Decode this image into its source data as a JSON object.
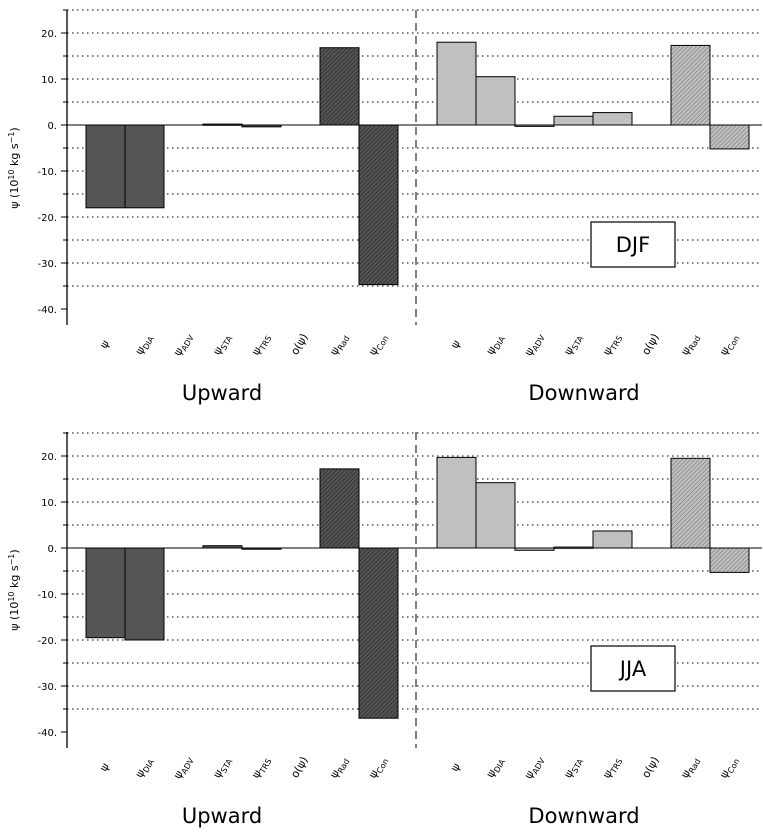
{
  "chart_data": [
    {
      "type": "bar",
      "season": "DJF",
      "ylabel": "ψ (10¹⁰ kg s⁻¹)",
      "ylim": [
        -40,
        25
      ],
      "yticks": [
        20,
        10,
        0,
        -10,
        -20,
        -30,
        -40
      ],
      "tick_labels": [
        "20.",
        "10.",
        "0.",
        "-10.",
        "-20.",
        "-30.",
        "-40."
      ],
      "grid": true,
      "groups": [
        {
          "name": "Upward",
          "categories": [
            {
              "base": "ψ",
              "sub": ""
            },
            {
              "base": "ψ",
              "sub": "DIA"
            },
            {
              "base": "ψ",
              "sub": "ADV"
            },
            {
              "base": "ψ",
              "sub": "STA"
            },
            {
              "base": "ψ",
              "sub": "TRS"
            },
            {
              "base": "o(ψ)",
              "sub": ""
            },
            {
              "base": "ψ",
              "sub": "Rad"
            },
            {
              "base": "ψ",
              "sub": "Con"
            }
          ],
          "values": [
            -18.0,
            -18.0,
            0.0,
            0.2,
            -0.4,
            0.0,
            16.8,
            -34.7
          ],
          "styles": [
            "dark",
            "dark",
            "dark",
            "dark",
            "dark",
            "dark",
            "dark-hatch",
            "dark-hatch"
          ]
        },
        {
          "name": "Downward",
          "categories": [
            {
              "base": "ψ",
              "sub": ""
            },
            {
              "base": "ψ",
              "sub": "DIA"
            },
            {
              "base": "ψ",
              "sub": "ADV"
            },
            {
              "base": "ψ",
              "sub": "STA"
            },
            {
              "base": "ψ",
              "sub": "TRS"
            },
            {
              "base": "o(ψ)",
              "sub": ""
            },
            {
              "base": "ψ",
              "sub": "Rad"
            },
            {
              "base": "ψ",
              "sub": "Con"
            }
          ],
          "values": [
            18.0,
            10.5,
            -0.3,
            1.9,
            2.7,
            0.0,
            17.3,
            -5.2
          ],
          "styles": [
            "light",
            "light",
            "light",
            "light",
            "light",
            "light",
            "light-hatch",
            "light-hatch"
          ]
        }
      ]
    },
    {
      "type": "bar",
      "season": "JJA",
      "ylabel": "ψ (10¹⁰ kg s⁻¹)",
      "ylim": [
        -40,
        25
      ],
      "yticks": [
        20,
        10,
        0,
        -10,
        -20,
        -30,
        -40
      ],
      "tick_labels": [
        "20.",
        "10.",
        "0.",
        "-10.",
        "-20.",
        "-30.",
        "-40."
      ],
      "grid": true,
      "groups": [
        {
          "name": "Upward",
          "categories": [
            {
              "base": "ψ",
              "sub": ""
            },
            {
              "base": "ψ",
              "sub": "DIA"
            },
            {
              "base": "ψ",
              "sub": "ADV"
            },
            {
              "base": "ψ",
              "sub": "STA"
            },
            {
              "base": "ψ",
              "sub": "TRS"
            },
            {
              "base": "o(ψ)",
              "sub": ""
            },
            {
              "base": "ψ",
              "sub": "Rad"
            },
            {
              "base": "ψ",
              "sub": "Con"
            }
          ],
          "values": [
            -19.5,
            -20.0,
            0.0,
            0.5,
            -0.2,
            0.0,
            17.2,
            -37.0
          ],
          "styles": [
            "dark",
            "dark",
            "dark",
            "dark",
            "dark",
            "dark",
            "dark-hatch",
            "dark-hatch"
          ]
        },
        {
          "name": "Downward",
          "categories": [
            {
              "base": "ψ",
              "sub": ""
            },
            {
              "base": "ψ",
              "sub": "DIA"
            },
            {
              "base": "ψ",
              "sub": "ADV"
            },
            {
              "base": "ψ",
              "sub": "STA"
            },
            {
              "base": "ψ",
              "sub": "TRS"
            },
            {
              "base": "o(ψ)",
              "sub": ""
            },
            {
              "base": "ψ",
              "sub": "Rad"
            },
            {
              "base": "ψ",
              "sub": "Con"
            }
          ],
          "values": [
            19.7,
            14.2,
            -0.5,
            0.2,
            3.7,
            0.0,
            19.5,
            -5.3
          ],
          "styles": [
            "light",
            "light",
            "light",
            "light",
            "light",
            "light",
            "light-hatch",
            "light-hatch"
          ]
        }
      ]
    }
  ],
  "colors": {
    "dark": "#555555",
    "light": "#c0c0c0",
    "axis": "#000000",
    "grid": "#000000"
  }
}
